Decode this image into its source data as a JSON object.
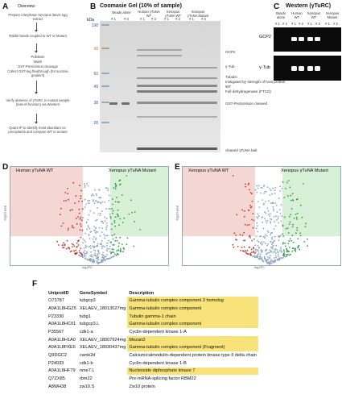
{
  "panels": {
    "A": "A",
    "B": "B",
    "C": "C",
    "D": "D",
    "E": "E",
    "F": "F"
  },
  "overview": {
    "title": "Overview:",
    "steps": [
      "Prepare interphase Xenopus laevis egg extract",
      "Rabbit beads coupled to WT or Mutant",
      "Pulldown",
      "Wash",
      "GST-PreScission cleavage",
      "Collect GST-tag flowthrough (for sucrose gradient)",
      "Verify absence of γTuRC in mutant sample (loss-of-function) via Western",
      "Quant IP to identify most abundant co-precipitants and compare WT to mutant"
    ]
  },
  "coomassie": {
    "title": "Coomasie Gel (10% of sample)",
    "kda_label": "kDa",
    "markers": [
      "198",
      "98",
      "62",
      "49",
      "38",
      "28"
    ],
    "lane_groups": [
      "Beads alone",
      "Human γTuNA WT",
      "Xenopus γTuNA WT",
      "Xenopus γTuNA Mutant"
    ],
    "reps": [
      "# 1",
      "# 2",
      "# 1",
      "# 2",
      "# 1",
      "# 2",
      "# 1",
      "# 2"
    ],
    "annotations": [
      "GCPs",
      "γ-Tub",
      "Tubulin",
      "Instigated by strength of host protein WT",
      "Full dehydrogenase (FTCD)",
      "GST-PreScission cleaved",
      "cleaved γTuNA bait"
    ]
  },
  "western": {
    "title": "Western (γTuRC)",
    "lane_groups": [
      "Beads alone",
      "Human WT",
      "Xenopus WT",
      "Xenopus Mutant"
    ],
    "reps": [
      "# 1",
      "# 2",
      "# 1",
      "# 2",
      "# 1",
      "# 2",
      "# 1",
      "# 2"
    ],
    "row_labels": [
      "GCP2",
      "γ-Tub"
    ]
  },
  "volcano_d": {
    "left_label": "Human γTuNA WT",
    "right_label": "Xenopus γTuNA Mutant",
    "xlabel": "log2FC",
    "ylabel": "-log10 pval"
  },
  "volcano_e": {
    "left_label": "Xenopus γTuNA WT",
    "right_label": "Xenopus γTuNA Mutant",
    "xlabel": "log2FC",
    "ylabel": "-log10 pval"
  },
  "gene_table": {
    "headers": [
      "UniprotID",
      "GeneSymbol",
      "Description"
    ],
    "rows": [
      {
        "id": "O73787",
        "sym": "tubgcp3",
        "desc": "Gamma-tubulin complex component 3 homolog",
        "hl": true
      },
      {
        "id": "A0A1L8HGZ5",
        "sym": "XELAEV_18013027mg",
        "desc": "Gamma-tubulin complex component",
        "hl": true
      },
      {
        "id": "P23330",
        "sym": "tubg1",
        "desc": "Tubulin gamma-1 chain",
        "hl": true
      },
      {
        "id": "A0A1L8HC01",
        "sym": "tubgcp3.L",
        "desc": "Gamma-tubulin complex component",
        "hl": true
      },
      {
        "id": "P35567",
        "sym": "cdk1-a",
        "desc": "Cyclin-dependent kinase 1-A",
        "hl": false
      },
      {
        "id": "A0A1L8H1A0",
        "sym": "XELAEV_18007924mg",
        "desc": "Mozart2",
        "hl": true
      },
      {
        "id": "A0A1L8FKE6",
        "sym": "XELAEV_18030437mg",
        "desc": "Gamma-tubulin complex component (Fragment)",
        "hl": true
      },
      {
        "id": "Q9DGC2",
        "sym": "camk2d",
        "desc": "Calcium/calmodulin-dependent protein kinase type II delta chain",
        "hl": false
      },
      {
        "id": "P24033",
        "sym": "cdk1-b",
        "desc": "Cyclin-dependent kinase 1-B",
        "hl": false
      },
      {
        "id": "A0A1L8HF79",
        "sym": "nme7.L",
        "desc": "Nucleoside diphosphate kinase 7",
        "hl": true
      },
      {
        "id": "Q7ZX85",
        "sym": "rbm22",
        "desc": "Pre-mRNA-splicing factor RBM22",
        "hl": false
      },
      {
        "id": "A8WH38",
        "sym": "zw10.S",
        "desc": "Zw10 protein",
        "hl": false
      }
    ]
  },
  "colors": {
    "gel_band": "#8b8b8b",
    "western_bg": "#0b0b0b",
    "volcano_left": "#f4d6d2",
    "volcano_right": "#d8f0d8",
    "highlight": "#f7e37a",
    "marker_blue": "#3355aa"
  }
}
